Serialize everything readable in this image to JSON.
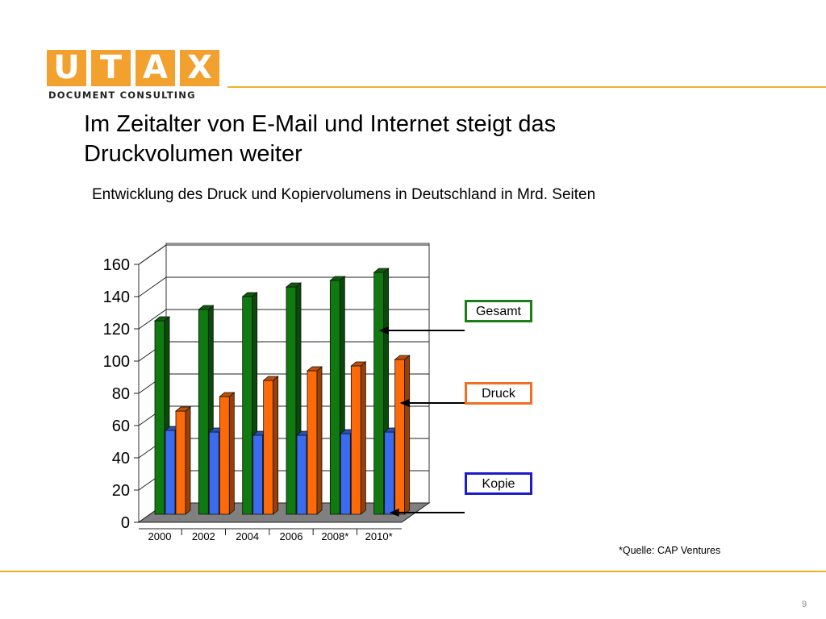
{
  "logo": {
    "letters": [
      "U",
      "T",
      "A",
      "X"
    ],
    "tagline": "DOCUMENT CONSULTING",
    "color": "#f2a12e"
  },
  "title": "Im Zeitalter von E-Mail und Internet steigt das Druckvolumen weiter",
  "subtitle": "Entwicklung des Druck und Kopiervolumens in Deutschland in Mrd. Seiten",
  "source": "*Quelle: CAP Ventures",
  "page_number": "9",
  "chart_data": {
    "type": "bar",
    "categories": [
      "2000",
      "2002",
      "2004",
      "2006",
      "2008*",
      "2010*"
    ],
    "ylim": [
      0,
      160
    ],
    "yticks": [
      "0",
      "20",
      "40",
      "60",
      "80",
      "100",
      "120",
      "140",
      "160"
    ],
    "grid": true,
    "series": [
      {
        "name": "Gesamt",
        "values": [
          125,
          132,
          140,
          146,
          150,
          155
        ],
        "color": "#0f7a0f",
        "border": "#1a7f1a"
      },
      {
        "name": "Kopie",
        "values": [
          57,
          56,
          54,
          54,
          55,
          56
        ],
        "color": "#3b6cf0",
        "border": "#1c1cc8"
      },
      {
        "name": "Druck",
        "values": [
          69,
          78,
          88,
          94,
          97,
          101
        ],
        "color": "#ff6a08",
        "border": "#f07020"
      }
    ],
    "legend": "right"
  }
}
